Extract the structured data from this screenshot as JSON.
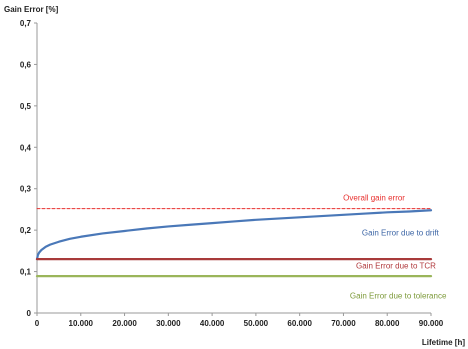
{
  "chart_data": {
    "type": "line",
    "title": "",
    "xlabel": "Lifetime [h]",
    "ylabel": "Gain Error [%]",
    "xlim": [
      0,
      90000
    ],
    "ylim": [
      0,
      0.7
    ],
    "x_ticks": [
      "0",
      "10.000",
      "20.000",
      "30.000",
      "40.000",
      "50.000",
      "60.000",
      "70.000",
      "80.000",
      "90.000"
    ],
    "y_ticks": [
      "0",
      "0,1",
      "0,2",
      "0,3",
      "0,4",
      "0,5",
      "0,6",
      "0,7"
    ],
    "grid": false,
    "legend": "none",
    "series": [
      {
        "name": "Overall gain error",
        "color": "#e8312f",
        "style": "dashed",
        "x": [
          0,
          90000
        ],
        "y": [
          0.252,
          0.252
        ]
      },
      {
        "name": "Gain Error due to drift",
        "color": "#4a78b8",
        "style": "solid",
        "x": [
          0,
          200,
          500,
          1000,
          2000,
          3000,
          5000,
          7500,
          10000,
          15000,
          20000,
          25000,
          30000,
          35000,
          40000,
          45000,
          50000,
          55000,
          60000,
          65000,
          70000,
          75000,
          80000,
          85000,
          90000
        ],
        "y": [
          0.13,
          0.14,
          0.146,
          0.152,
          0.16,
          0.165,
          0.172,
          0.179,
          0.184,
          0.192,
          0.198,
          0.204,
          0.209,
          0.213,
          0.217,
          0.221,
          0.225,
          0.228,
          0.231,
          0.234,
          0.237,
          0.24,
          0.243,
          0.245,
          0.248
        ]
      },
      {
        "name": "Gain Error due to TCR",
        "color": "#a83a3a",
        "style": "solid",
        "x": [
          0,
          90000
        ],
        "y": [
          0.13,
          0.13
        ]
      },
      {
        "name": "Gain Error due to tolerance",
        "color": "#9ab55a",
        "style": "solid",
        "x": [
          0,
          90000
        ],
        "y": [
          0.089,
          0.089
        ]
      }
    ],
    "annotations": [
      {
        "text": "Overall gain error",
        "color": "#e8312f",
        "x": 77000,
        "y": 0.272,
        "weight": "normal"
      },
      {
        "text": "Gain Error due to drift",
        "color": "#3d66a6",
        "x": 83000,
        "y": 0.187,
        "weight": "normal"
      },
      {
        "text": "Gain Error due to TCR",
        "color": "#b0383b",
        "x": 82000,
        "y": 0.107,
        "weight": "normal"
      },
      {
        "text": "Gain Error due to tolerance",
        "color": "#7d9a3a",
        "x": 82500,
        "y": 0.035,
        "weight": "normal"
      }
    ]
  }
}
